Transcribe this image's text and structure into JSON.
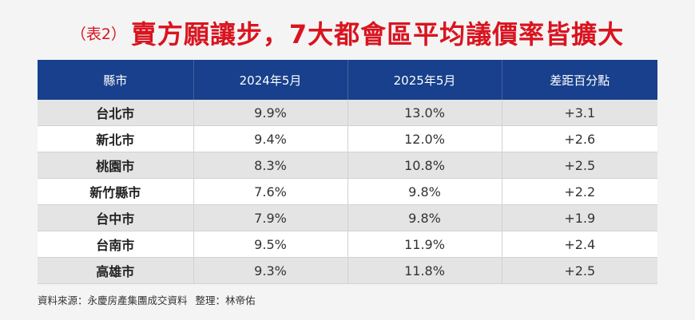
{
  "title": {
    "tag": "（表2）",
    "headline": "賣方願讓步，7大都會區平均議價率皆擴大"
  },
  "table": {
    "headers": [
      "縣市",
      "2024年5月",
      "2025年5月",
      "差距百分點"
    ],
    "rows": [
      [
        "台北市",
        "9.9%",
        "13.0%",
        "+3.1"
      ],
      [
        "新北市",
        "9.4%",
        "12.0%",
        "+2.6"
      ],
      [
        "桃園市",
        "8.3%",
        "10.8%",
        "+2.5"
      ],
      [
        "新竹縣市",
        "7.6%",
        "9.8%",
        "+2.2"
      ],
      [
        "台中市",
        "7.9%",
        "9.8%",
        "+1.9"
      ],
      [
        "台南市",
        "9.5%",
        "11.9%",
        "+2.4"
      ],
      [
        "高雄市",
        "9.3%",
        "11.8%",
        "+2.5"
      ]
    ]
  },
  "footer": {
    "source": "資料來源：永慶房產集團成交資料",
    "editor": "整理：林帝佑"
  },
  "colors": {
    "title": "#d9141f",
    "header_bg": "#18408c",
    "row_alt_bg": "#e4e4e4",
    "page_bg": "#f4f4f4"
  }
}
